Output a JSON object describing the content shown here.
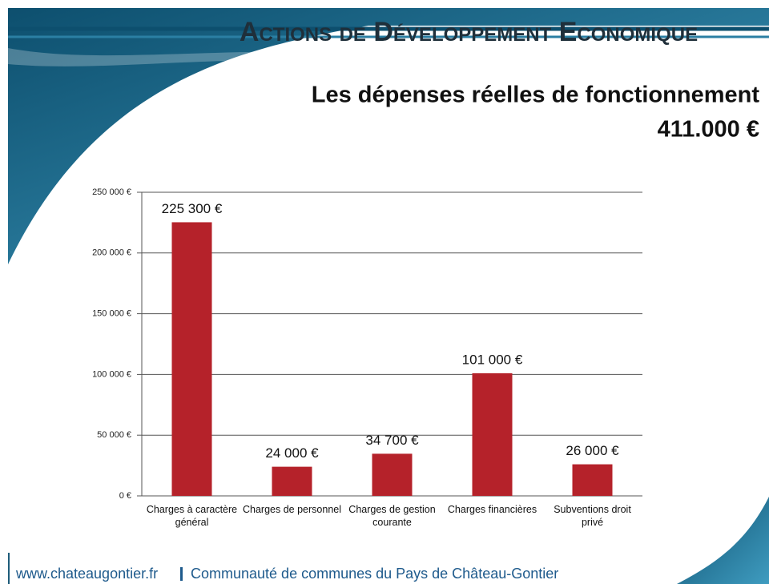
{
  "header": {
    "title": "Actions de Développement Economique"
  },
  "chart_data": {
    "type": "bar",
    "title": "Les dépenses réelles de fonctionnement",
    "subtitle": "411.000 €",
    "categories": [
      "Charges à caractère général",
      "Charges de personnel",
      "Charges de gestion courante",
      "Charges financières",
      "Subventions droit privé"
    ],
    "values": [
      225300,
      24000,
      34700,
      101000,
      26000
    ],
    "value_labels": [
      "225 300 €",
      "24 000 €",
      "34 700 €",
      "101 000 €",
      "26 000 €"
    ],
    "color": "#b5222a",
    "ylim": [
      0,
      250000
    ],
    "yticks": [
      {
        "value": 0,
        "label": "0 €"
      },
      {
        "value": 50000,
        "label": "50 000 €"
      },
      {
        "value": 100000,
        "label": "100 000 €"
      },
      {
        "value": 150000,
        "label": "150 000 €"
      },
      {
        "value": 200000,
        "label": "200 000 €"
      },
      {
        "value": 250000,
        "label": "250 000 €"
      }
    ],
    "grid": true
  },
  "footer": {
    "site": "www.chateaugontier.fr",
    "org": "Communauté de communes du Pays de Château-Gontier"
  }
}
